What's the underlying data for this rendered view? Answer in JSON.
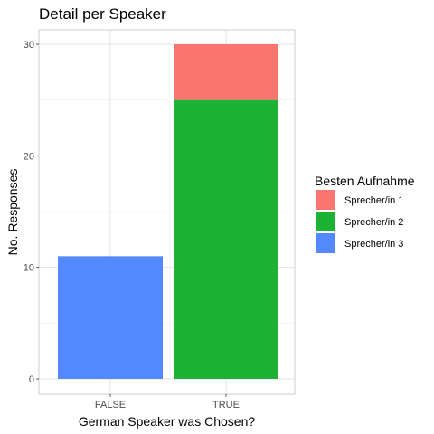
{
  "chart_data": {
    "type": "bar",
    "stacked": true,
    "title": "Detail per Speaker",
    "xlabel": "German Speaker was Chosen?",
    "ylabel": "No. Responses",
    "categories": [
      "FALSE",
      "TRUE"
    ],
    "ylim": [
      0,
      30
    ],
    "yticks": [
      0,
      10,
      20,
      30
    ],
    "grid": true,
    "legend": {
      "title": "Besten Aufnahme",
      "position": "right"
    },
    "series": [
      {
        "name": "Sprecher/in 1",
        "color": "#F8766D",
        "values": [
          0,
          5
        ]
      },
      {
        "name": "Sprecher/in 2",
        "color": "#1DB233",
        "values": [
          0,
          25
        ]
      },
      {
        "name": "Sprecher/in 3",
        "color": "#5388FF",
        "values": [
          11,
          0
        ]
      }
    ]
  }
}
